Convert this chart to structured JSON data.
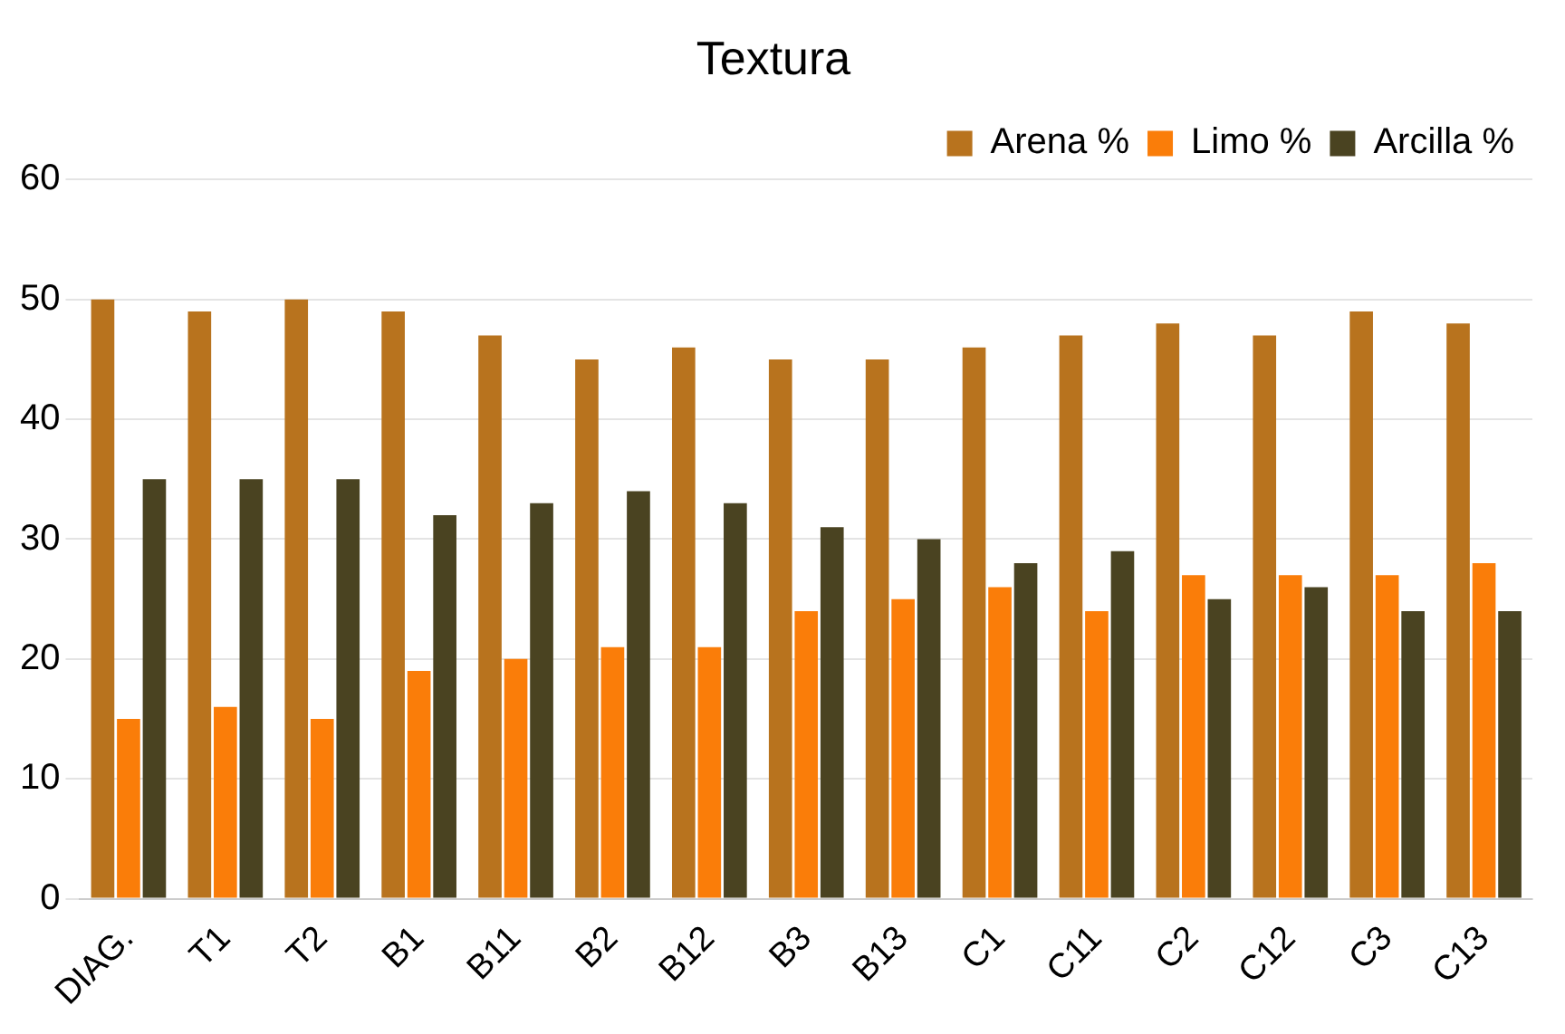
{
  "chart_data": {
    "type": "bar",
    "title": "Textura",
    "categories": [
      "DIAG.",
      "T1",
      "T2",
      "B1",
      "B11",
      "B2",
      "B12",
      "B3",
      "B13",
      "C1",
      "C11",
      "C2",
      "C12",
      "C3",
      "C13"
    ],
    "series": [
      {
        "name": "Arena %",
        "color": "#b8731e",
        "values": [
          50,
          49,
          50,
          49,
          47,
          45,
          46,
          45,
          45,
          46,
          47,
          48,
          47,
          49,
          48
        ]
      },
      {
        "name": "Limo %",
        "color": "#fa7d09",
        "values": [
          15,
          16,
          15,
          19,
          20,
          21,
          21,
          24,
          25,
          26,
          24,
          27,
          27,
          27,
          28
        ]
      },
      {
        "name": "Arcilla %",
        "color": "#4a4321",
        "values": [
          35,
          35,
          35,
          32,
          33,
          34,
          33,
          31,
          30,
          28,
          29,
          25,
          26,
          24,
          24
        ]
      }
    ],
    "ylim": [
      0,
      60
    ],
    "yticks": [
      0,
      10,
      20,
      30,
      40,
      50,
      60
    ],
    "grid": "y",
    "legend": "top right"
  }
}
